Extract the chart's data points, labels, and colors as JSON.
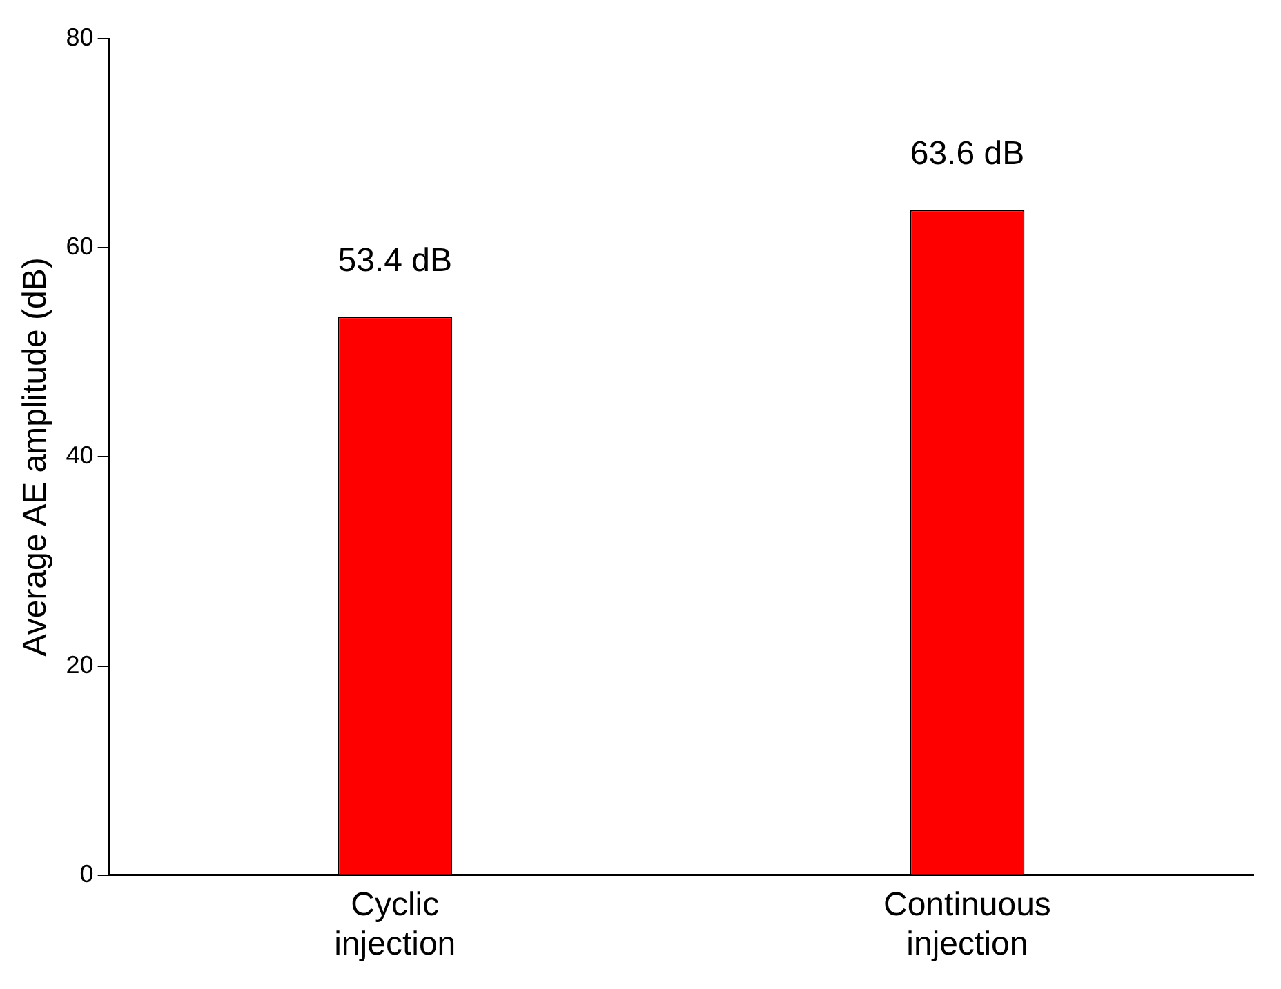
{
  "chart_data": {
    "type": "bar",
    "ylabel": "Average AE amplitude (dB)",
    "categories": [
      "Cyclic injection",
      "Continuous injection"
    ],
    "values": [
      53.4,
      63.6
    ],
    "color": "#ff0000",
    "value_labels": [
      "53.4 dB",
      "63.6 dB"
    ],
    "ylim": [
      0,
      80
    ],
    "yticks": [
      0,
      20,
      40,
      60,
      80
    ],
    "grid": false,
    "legend": false
  }
}
